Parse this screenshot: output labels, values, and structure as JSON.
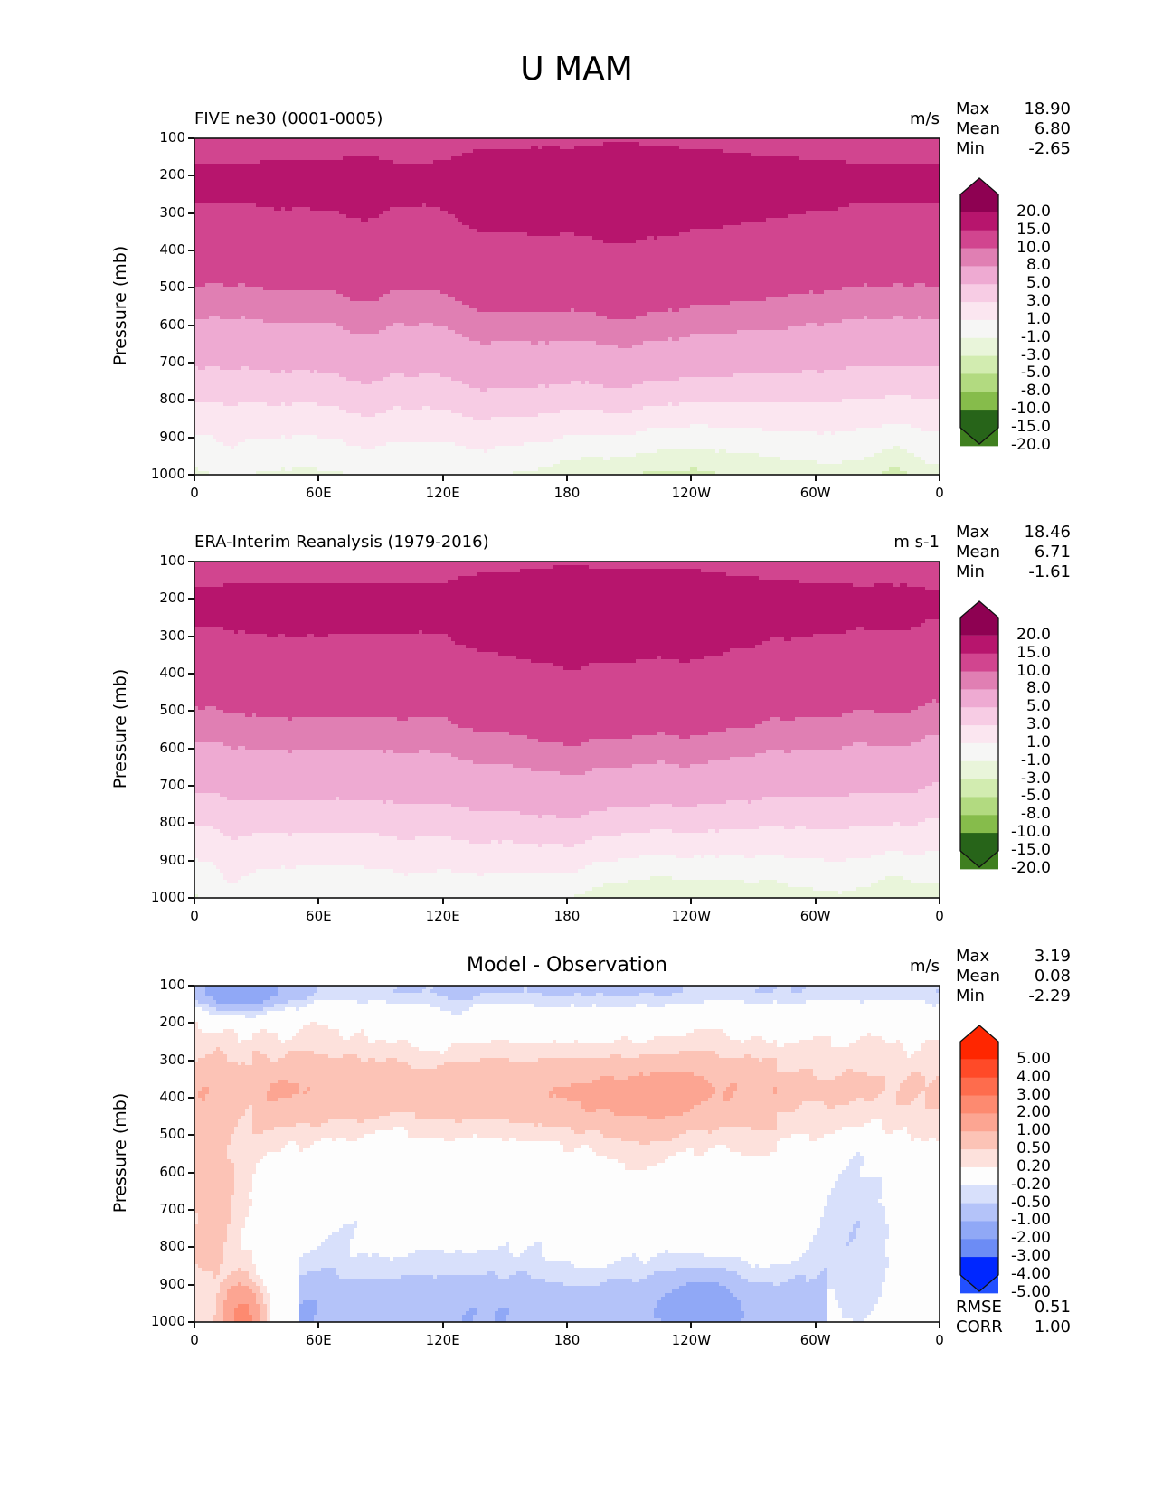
{
  "suptitle": "U MAM",
  "chart_data": [
    {
      "type": "heatmap",
      "id": "model",
      "title_left": "FIVE ne30 (0001-0005)",
      "units": "m/s",
      "ylabel": "Pressure (mb)",
      "xlabel": "",
      "x_tick_labels": [
        "0",
        "60E",
        "120E",
        "180",
        "120W",
        "60W",
        "0"
      ],
      "x_range_deg": [
        0,
        360
      ],
      "y_tick_labels": [
        "100",
        "200",
        "300",
        "400",
        "500",
        "600",
        "700",
        "800",
        "900",
        "1000"
      ],
      "y_range_mb": [
        100,
        1000
      ],
      "stats": [
        {
          "label": "Max",
          "value": "18.90"
        },
        {
          "label": "Mean",
          "value": "6.80"
        },
        {
          "label": "Min",
          "value": "-2.65"
        }
      ],
      "colorbar": {
        "levels": [
          "-20.0",
          "-15.0",
          "-10.0",
          "-8.0",
          "-5.0",
          "-3.0",
          "-1.0",
          "1.0",
          "3.0",
          "5.0",
          "8.0",
          "10.0",
          "15.0",
          "20.0"
        ],
        "extend": "both",
        "colors": [
          "#276419",
          "#3f7f1f",
          "#5a9b2d",
          "#86bc4b",
          "#b2da80",
          "#d2ecb0",
          "#e9f5da",
          "#f6f6f5",
          "#fbe6f0",
          "#f7cce4",
          "#eeaad2",
          "#e07fb3",
          "#d1458f",
          "#b7156d",
          "#8e0152"
        ]
      },
      "field_description": "Zonal-mean-like longitude-pressure cross section of zonal wind; jet core 15-20 m/s near 200 mb, decreasing to ~1 m/s near surface, weak easterlies (-1 to -3 m/s) near 1000 mb between 150E and 100W"
    },
    {
      "type": "heatmap",
      "id": "obs",
      "title_left": "ERA-Interim Reanalysis (1979-2016)",
      "units": "m s-1",
      "ylabel": "Pressure (mb)",
      "xlabel": "",
      "x_tick_labels": [
        "0",
        "60E",
        "120E",
        "180",
        "120W",
        "60W",
        "0"
      ],
      "x_range_deg": [
        0,
        360
      ],
      "y_tick_labels": [
        "100",
        "200",
        "300",
        "400",
        "500",
        "600",
        "700",
        "800",
        "900",
        "1000"
      ],
      "y_range_mb": [
        100,
        1000
      ],
      "stats": [
        {
          "label": "Max",
          "value": "18.46"
        },
        {
          "label": "Mean",
          "value": "6.71"
        },
        {
          "label": "Min",
          "value": "-1.61"
        }
      ],
      "colorbar": {
        "levels": [
          "-20.0",
          "-15.0",
          "-10.0",
          "-8.0",
          "-5.0",
          "-3.0",
          "-1.0",
          "1.0",
          "3.0",
          "5.0",
          "8.0",
          "10.0",
          "15.0",
          "20.0"
        ],
        "extend": "both",
        "colors": [
          "#276419",
          "#3f7f1f",
          "#5a9b2d",
          "#86bc4b",
          "#b2da80",
          "#d2ecb0",
          "#e9f5da",
          "#f6f6f5",
          "#fbe6f0",
          "#f7cce4",
          "#eeaad2",
          "#e07fb3",
          "#d1458f",
          "#b7156d",
          "#8e0152"
        ]
      },
      "field_description": "Similar structure to model; jet core 15-20 m/s near 200 mb; small -1 to -3 m/s region near 1000 mb around 170E-140W"
    },
    {
      "type": "heatmap",
      "id": "diff",
      "title_center": "Model - Observation",
      "units": "m/s",
      "ylabel": "Pressure (mb)",
      "xlabel": "",
      "x_tick_labels": [
        "0",
        "60E",
        "120E",
        "180",
        "120W",
        "60W",
        "0"
      ],
      "x_range_deg": [
        0,
        360
      ],
      "y_tick_labels": [
        "100",
        "200",
        "300",
        "400",
        "500",
        "600",
        "700",
        "800",
        "900",
        "1000"
      ],
      "y_range_mb": [
        100,
        1000
      ],
      "stats": [
        {
          "label": "Max",
          "value": "3.19"
        },
        {
          "label": "Mean",
          "value": "0.08"
        },
        {
          "label": "Min",
          "value": "-2.29"
        }
      ],
      "bottom_stats": [
        {
          "label": "RMSE",
          "value": "0.51"
        },
        {
          "label": "CORR",
          "value": "1.00"
        }
      ],
      "colorbar": {
        "levels": [
          "-5.00",
          "-4.00",
          "-3.00",
          "-2.00",
          "-1.00",
          "-0.50",
          "-0.20",
          "0.20",
          "0.50",
          "1.00",
          "2.00",
          "3.00",
          "4.00",
          "5.00"
        ],
        "extend": "both",
        "colors": [
          "#0027ff",
          "#2250ff",
          "#4a6ff9",
          "#6c8cf5",
          "#90a8f6",
          "#b4c3f9",
          "#d8e0fb",
          "#fdfdfd",
          "#fde1dc",
          "#fcc3b6",
          "#fca592",
          "#fd8a70",
          "#fe6c4d",
          "#ff4a28",
          "#ff2600"
        ]
      },
      "field_description": "Differences mostly within -1 to +1 m/s; positive (0.5-1 m/s) band 250-500 mb across 40E-70W; negative (-0.5 to -2 m/s) near 900-1000 mb from 50E-60W and near 100-150 mb at 10E-30E; positive up to 2-3 m/s near surface at ~20E"
    }
  ]
}
